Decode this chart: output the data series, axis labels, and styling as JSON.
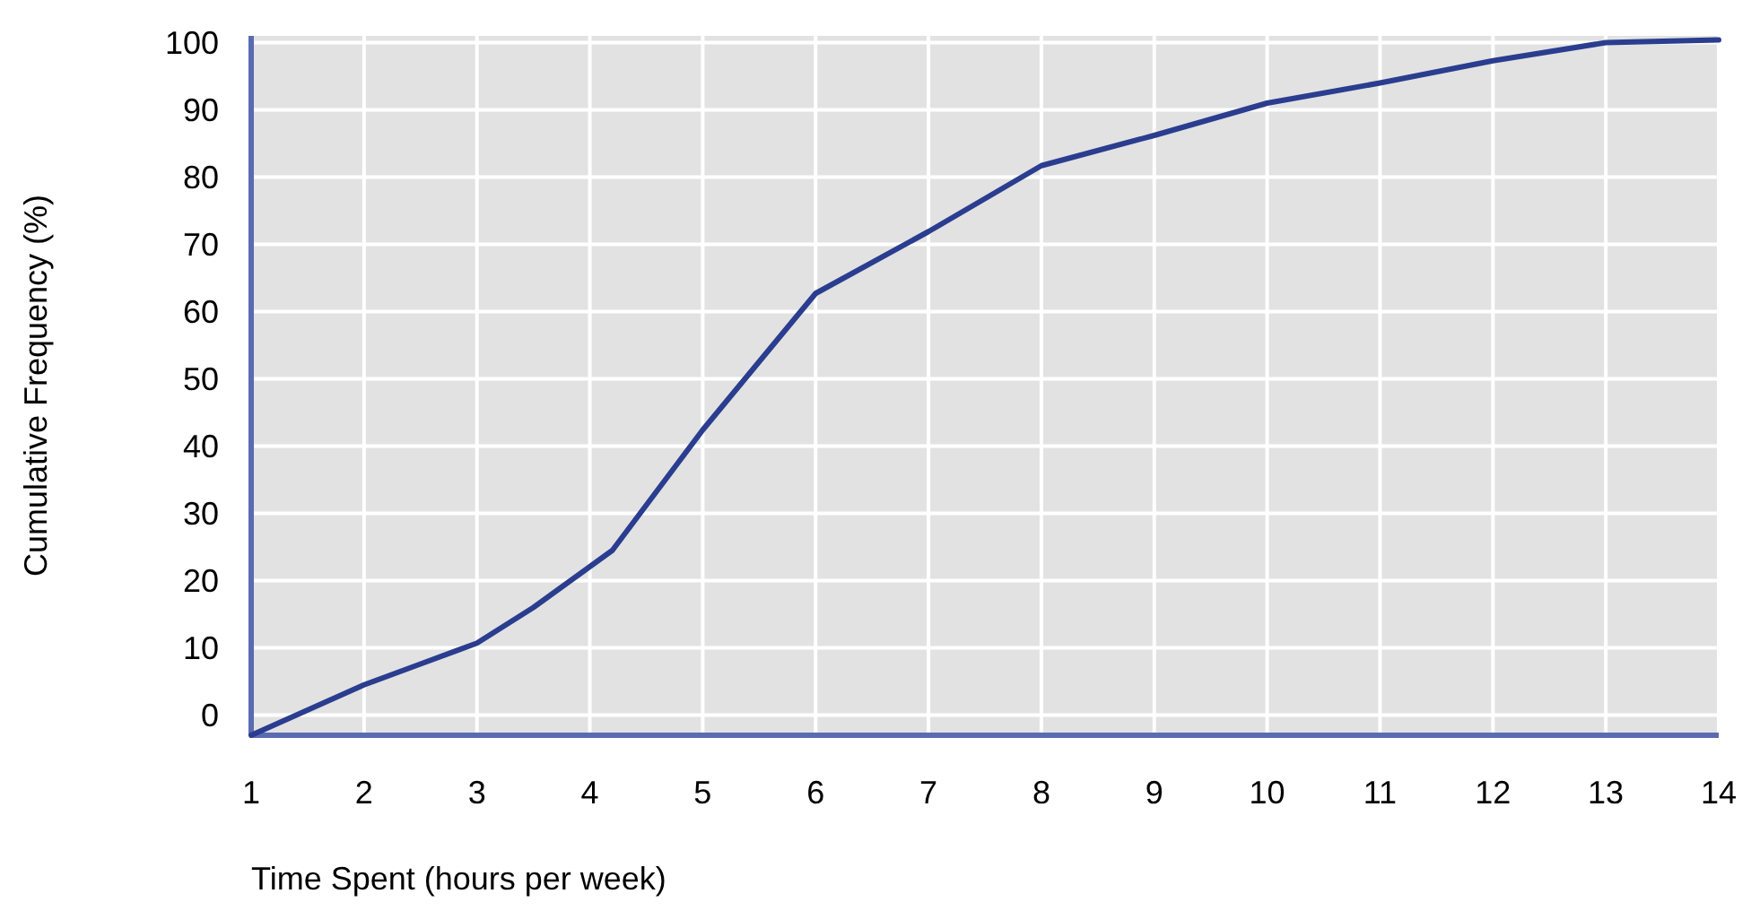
{
  "chart_data": {
    "type": "line",
    "xlabel": "Time Spent (hours per week)",
    "ylabel": "Cumulative Frequency (%)",
    "x": [
      1,
      2,
      2.5,
      3,
      3.5,
      4.2,
      5,
      6,
      7,
      8,
      9,
      10,
      11,
      12,
      13,
      14
    ],
    "series": [
      {
        "color": "#2a3d8f",
        "values": [
          -3,
          4.5,
          7.6,
          10.7,
          16,
          24.5,
          42.4,
          62.7,
          71.9,
          81.7,
          86.2,
          91,
          94,
          97.3,
          100,
          100.4
        ]
      }
    ],
    "xlim": [
      1,
      14
    ],
    "xticks": [
      1,
      2,
      3,
      4,
      5,
      6,
      7,
      8,
      9,
      10,
      11,
      12,
      13,
      14
    ],
    "ylim": [
      -3,
      101
    ],
    "yticks": [
      0,
      10,
      20,
      30,
      40,
      50,
      60,
      70,
      80,
      90,
      100
    ],
    "grid": true,
    "marker": "none",
    "line_style": "solid"
  }
}
